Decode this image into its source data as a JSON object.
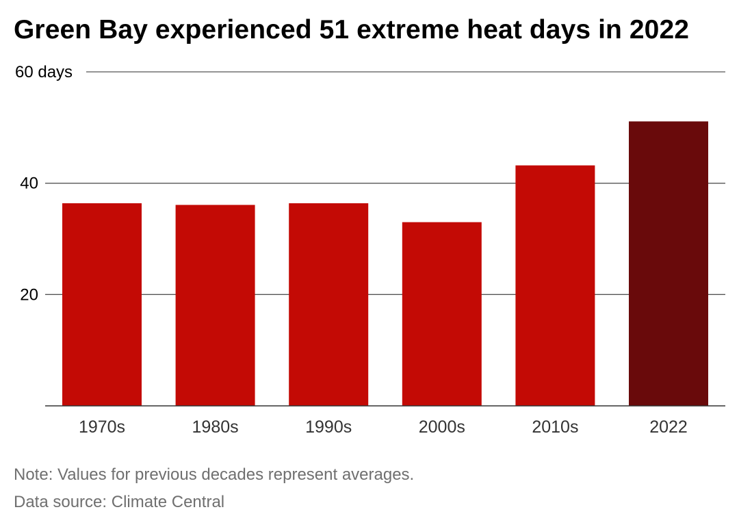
{
  "title": "Green Bay experienced 51 extreme heat days in 2022",
  "note": "Note: Values for previous decades represent averages.",
  "source": "Data source: Climate Central",
  "colors": {
    "bar": "#c30a05",
    "highlight_bar": "#690a0b",
    "gridline": "#555555",
    "axis_text": "#333333"
  },
  "chart_data": {
    "type": "bar",
    "categories": [
      "1970s",
      "1980s",
      "1990s",
      "2000s",
      "2010s",
      "2022"
    ],
    "values": [
      36.4,
      36.1,
      36.4,
      33.0,
      43.2,
      51.1
    ],
    "highlight_index": 5,
    "ylim": [
      0,
      60
    ],
    "yticks": [
      20,
      40,
      60
    ],
    "ytick_labels": [
      "20",
      "40",
      "60 days"
    ],
    "xlabel": "",
    "ylabel": "",
    "grid": "horizontal"
  }
}
